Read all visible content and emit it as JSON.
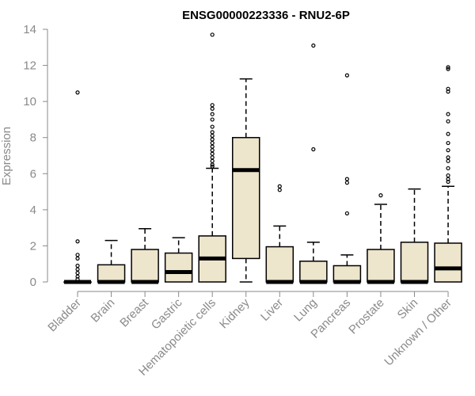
{
  "chart_data": {
    "type": "box",
    "title": "ENSG00000223336 - RNU2-6P",
    "xlabel": "",
    "ylabel": "Expression",
    "ylim": [
      0,
      14
    ],
    "yticks": [
      0,
      2,
      4,
      6,
      8,
      10,
      12,
      14
    ],
    "grid": false,
    "colors": {
      "box_fill": "#ede5cc",
      "box_stroke": "#000000",
      "axis": "#8a8a8a"
    },
    "categories": [
      "Bladder",
      "Brain",
      "Breast",
      "Gastric",
      "Hematopoietic cells",
      "Kidney",
      "Liver",
      "Lung",
      "Pancreas",
      "Prostate",
      "Skin",
      "Unknown / Other"
    ],
    "boxes": [
      {
        "category": "Bladder",
        "q1": 0,
        "median": 0,
        "q3": 0,
        "whisker_low": 0,
        "whisker_high": 0,
        "outliers": [
          10.5,
          2.25,
          1.5,
          1.3,
          0.9,
          0.7,
          0.5,
          0.3,
          0.15
        ]
      },
      {
        "category": "Brain",
        "q1": 0,
        "median": 0,
        "q3": 0.95,
        "whisker_low": 0,
        "whisker_high": 2.3,
        "outliers": []
      },
      {
        "category": "Breast",
        "q1": 0,
        "median": 0,
        "q3": 1.8,
        "whisker_low": 0,
        "whisker_high": 2.95,
        "outliers": []
      },
      {
        "category": "Gastric",
        "q1": 0,
        "median": 0.55,
        "q3": 1.6,
        "whisker_low": 0,
        "whisker_high": 2.45,
        "outliers": []
      },
      {
        "category": "Hematopoietic cells",
        "q1": 0,
        "median": 1.3,
        "q3": 2.55,
        "whisker_low": 0,
        "whisker_high": 6.3,
        "outliers": [
          13.7,
          9.8,
          9.6,
          9.3,
          9.0,
          8.6,
          8.3,
          8.1,
          7.9,
          7.7,
          7.5,
          7.3,
          7.1,
          6.9,
          6.7,
          6.5,
          6.4
        ]
      },
      {
        "category": "Kidney",
        "q1": 1.3,
        "median": 6.2,
        "q3": 8.0,
        "whisker_low": 0,
        "whisker_high": 11.25,
        "outliers": []
      },
      {
        "category": "Liver",
        "q1": 0,
        "median": 0,
        "q3": 1.95,
        "whisker_low": 0,
        "whisker_high": 3.1,
        "outliers": [
          5.3,
          5.1
        ]
      },
      {
        "category": "Lung",
        "q1": 0,
        "median": 0,
        "q3": 1.15,
        "whisker_low": 0,
        "whisker_high": 2.2,
        "outliers": [
          13.1,
          7.35
        ]
      },
      {
        "category": "Pancreas",
        "q1": 0,
        "median": 0,
        "q3": 0.9,
        "whisker_low": 0,
        "whisker_high": 1.5,
        "outliers": [
          11.45,
          5.7,
          5.5,
          3.8
        ]
      },
      {
        "category": "Prostate",
        "q1": 0,
        "median": 0,
        "q3": 1.8,
        "whisker_low": 0,
        "whisker_high": 4.3,
        "outliers": [
          4.8
        ]
      },
      {
        "category": "Skin",
        "q1": 0,
        "median": 0,
        "q3": 2.2,
        "whisker_low": 0,
        "whisker_high": 5.15,
        "outliers": []
      },
      {
        "category": "Unknown / Other",
        "q1": 0,
        "median": 0.75,
        "q3": 2.15,
        "whisker_low": 0,
        "whisker_high": 5.3,
        "outliers": [
          11.9,
          11.8,
          10.7,
          10.55,
          9.3,
          8.9,
          8.2,
          7.7,
          7.3,
          6.9,
          6.7,
          6.3,
          5.9,
          5.7,
          5.55
        ]
      }
    ]
  }
}
